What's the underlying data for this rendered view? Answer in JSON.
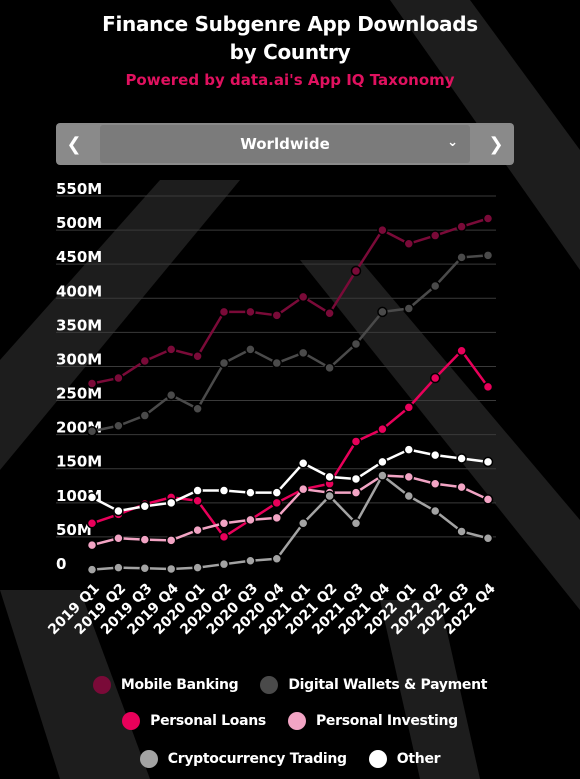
{
  "title_line1": "Finance Subgenre App Downloads",
  "title_line2": "by Country",
  "subtitle": "Powered by data.ai's App IQ Taxonomy",
  "selector": {
    "value": "Worldwide",
    "prev_icon": "chevron-left-icon",
    "next_icon": "chevron-right-icon",
    "dropdown_icon": "chevron-down-icon"
  },
  "colors": {
    "background": "#000000",
    "accent": "#e0115f",
    "mobile_banking": "#7a0a38",
    "digital_wallets": "#4a4a4a",
    "personal_loans": "#e8005a",
    "personal_investing": "#f2a4c4",
    "crypto": "#a3a3a3",
    "other": "#ffffff"
  },
  "chart_data": {
    "type": "line",
    "title": "Finance Subgenre App Downloads by Country",
    "x": [
      "2019 Q1",
      "2019 Q2",
      "2019 Q3",
      "2019 Q4",
      "2020 Q1",
      "2020 Q2",
      "2020 Q3",
      "2020 Q4",
      "2021 Q1",
      "2021 Q2",
      "2021 Q3",
      "2021 Q4",
      "2022 Q1",
      "2022 Q2",
      "2022 Q3",
      "2022 Q4"
    ],
    "y_ticks": [
      "0",
      "50M",
      "100M",
      "150M",
      "200M",
      "250M",
      "300M",
      "350M",
      "400M",
      "450M",
      "500M",
      "550M"
    ],
    "ylim": [
      0,
      550
    ],
    "y_unit": "M",
    "grid": true,
    "legend_position": "bottom",
    "series": [
      {
        "name": "Mobile Banking",
        "color": "#7a0a38",
        "values": [
          275,
          283,
          308,
          325,
          315,
          380,
          380,
          375,
          402,
          378,
          440,
          500,
          480,
          492,
          505,
          517
        ]
      },
      {
        "name": "Digital Wallets & Payment",
        "color": "#4a4a4a",
        "values": [
          205,
          213,
          228,
          258,
          238,
          305,
          325,
          305,
          320,
          298,
          333,
          380,
          385,
          418,
          460,
          463
        ]
      },
      {
        "name": "Personal Loans",
        "color": "#e8005a",
        "values": [
          70,
          83,
          98,
          108,
          103,
          50,
          75,
          100,
          120,
          128,
          190,
          208,
          240,
          283,
          323,
          270
        ]
      },
      {
        "name": "Personal Investing",
        "color": "#f2a4c4",
        "values": [
          38,
          48,
          46,
          45,
          60,
          70,
          75,
          78,
          120,
          115,
          115,
          140,
          138,
          128,
          123,
          105
        ]
      },
      {
        "name": "Cryptocurrency Trading",
        "color": "#a3a3a3",
        "values": [
          2,
          5,
          4,
          3,
          5,
          10,
          15,
          18,
          70,
          110,
          70,
          140,
          110,
          88,
          58,
          48
        ]
      },
      {
        "name": "Other",
        "color": "#ffffff",
        "values": [
          108,
          88,
          95,
          100,
          118,
          118,
          115,
          115,
          158,
          138,
          135,
          160,
          178,
          170,
          165,
          160
        ]
      }
    ]
  }
}
